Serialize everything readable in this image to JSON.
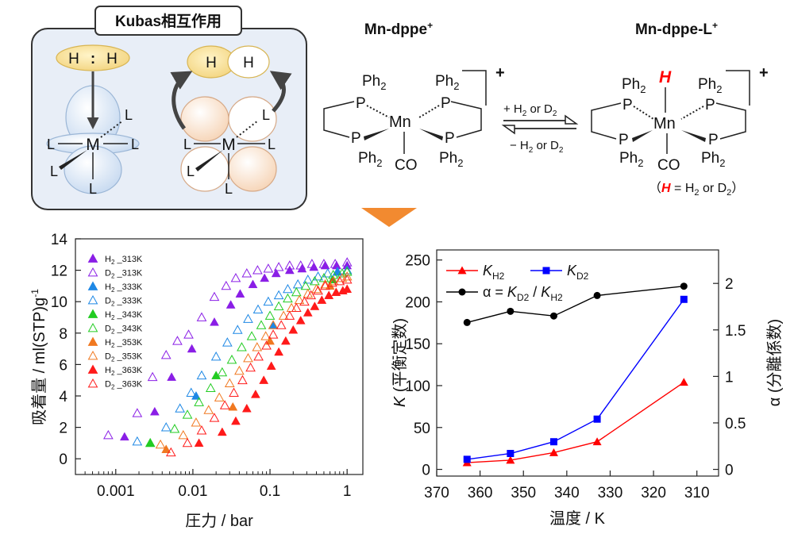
{
  "kubas": {
    "title": "Kubas相互作用",
    "h_dimer": {
      "left": "H",
      "colon": ":",
      "right": "H"
    },
    "h_pair": {
      "left": "H",
      "right": "H"
    },
    "metal": "M",
    "ligand": "L"
  },
  "scheme": {
    "left_title": "Mn-dppe",
    "right_title": "Mn-dppe-L",
    "sup_plus": "+",
    "charge": "+",
    "metal": "Mn",
    "P": "P",
    "Ph2": "Ph",
    "sub2": "2",
    "CO": "CO",
    "H": "H",
    "forward": {
      "prefix": "+ H",
      "mid": " or D",
      "sub": "2"
    },
    "reverse": {
      "prefix": "− H",
      "mid": " or D",
      "sub": "2"
    },
    "legend": {
      "open": "（",
      "H": "H",
      "eq": " = H",
      "or": " or D",
      "sub": "2",
      "close": "）"
    }
  },
  "colors": {
    "kubas_border": "#333333",
    "kubas_bg": "#e8eef7",
    "orbital_blue": "#dbe8f7",
    "orbital_peach": "#fbe3cf",
    "h_gold": "#f8df8e",
    "arrow_orange": "#f28a30",
    "h_red": "#ff0000"
  },
  "chart_data": [
    {
      "type": "scatter",
      "xlabel": "圧力 / bar",
      "ylabel": "吸着量 / ml(STP)g",
      "ylabel_sup": "-1",
      "xscale": "log",
      "xlim": [
        0.0003,
        1.6
      ],
      "ylim": [
        -1,
        14
      ],
      "xticks": [
        0.001,
        0.01,
        0.1,
        1
      ],
      "xtick_labels": [
        "0.001",
        "0.01",
        "0.1",
        "1"
      ],
      "yticks": [
        0,
        2,
        4,
        6,
        8,
        10,
        12,
        14
      ],
      "ytick_labels": [
        "0",
        "2",
        "4",
        "6",
        "8",
        "10",
        "12",
        "14"
      ],
      "legend_position": "top-left",
      "series": [
        {
          "label_prefix": "H",
          "label_sub": "2",
          "label_suffix": " _313K",
          "color": "#8a1ee6",
          "filled": true,
          "points": [
            [
              0.0013,
              1.4
            ],
            [
              0.0032,
              3.0
            ],
            [
              0.0053,
              5.2
            ],
            [
              0.0097,
              7.0
            ],
            [
              0.019,
              8.7
            ],
            [
              0.031,
              9.8
            ],
            [
              0.041,
              10.5
            ],
            [
              0.06,
              11.1
            ],
            [
              0.085,
              11.5
            ],
            [
              0.12,
              11.8
            ],
            [
              0.18,
              12.0
            ],
            [
              0.26,
              12.1
            ],
            [
              0.37,
              12.2
            ],
            [
              0.52,
              12.3
            ],
            [
              0.73,
              12.3
            ],
            [
              1.0,
              12.3
            ]
          ]
        },
        {
          "label_prefix": "D",
          "label_sub": "2",
          "label_suffix": " _313K",
          "color": "#8a1ee6",
          "filled": false,
          "points": [
            [
              0.0008,
              1.5
            ],
            [
              0.0019,
              2.9
            ],
            [
              0.003,
              5.2
            ],
            [
              0.0045,
              6.6
            ],
            [
              0.0063,
              7.5
            ],
            [
              0.0088,
              7.9
            ],
            [
              0.013,
              9.0
            ],
            [
              0.019,
              10.3
            ],
            [
              0.027,
              11.0
            ],
            [
              0.036,
              11.5
            ],
            [
              0.05,
              11.8
            ],
            [
              0.069,
              12.0
            ],
            [
              0.095,
              12.1
            ],
            [
              0.13,
              12.2
            ],
            [
              0.18,
              12.3
            ],
            [
              0.25,
              12.3
            ],
            [
              0.35,
              12.4
            ],
            [
              0.5,
              12.4
            ],
            [
              0.7,
              12.4
            ],
            [
              1.0,
              12.5
            ]
          ]
        },
        {
          "label_prefix": "H",
          "label_sub": "2",
          "label_suffix": " _333K",
          "color": "#1e88e5",
          "filled": true,
          "points": [
            [
              0.011,
              4.0
            ],
            [
              0.11,
              8.5
            ],
            [
              0.75,
              11.9
            ]
          ]
        },
        {
          "label_prefix": "D",
          "label_sub": "2",
          "label_suffix": " _333K",
          "color": "#1e88e5",
          "filled": false,
          "points": [
            [
              0.0019,
              1.1
            ],
            [
              0.0045,
              2.0
            ],
            [
              0.0068,
              3.2
            ],
            [
              0.0095,
              4.2
            ],
            [
              0.013,
              5.3
            ],
            [
              0.02,
              6.5
            ],
            [
              0.028,
              7.4
            ],
            [
              0.038,
              8.2
            ],
            [
              0.052,
              8.9
            ],
            [
              0.07,
              9.5
            ],
            [
              0.095,
              10.0
            ],
            [
              0.13,
              10.4
            ],
            [
              0.17,
              10.8
            ],
            [
              0.23,
              11.1
            ],
            [
              0.31,
              11.4
            ],
            [
              0.42,
              11.6
            ],
            [
              0.56,
              11.8
            ],
            [
              0.75,
              11.9
            ],
            [
              1.0,
              12.0
            ]
          ]
        },
        {
          "label_prefix": "H",
          "label_sub": "2",
          "label_suffix": " _343K",
          "color": "#22cc22",
          "filled": true,
          "points": [
            [
              0.0028,
              1.0
            ],
            [
              0.02,
              5.3
            ],
            [
              0.65,
              11.4
            ]
          ]
        },
        {
          "label_prefix": "D",
          "label_sub": "2",
          "label_suffix": " _343K",
          "color": "#22cc22",
          "filled": false,
          "points": [
            [
              0.0028,
              1.0
            ],
            [
              0.0058,
              1.9
            ],
            [
              0.0085,
              2.8
            ],
            [
              0.012,
              3.6
            ],
            [
              0.017,
              4.5
            ],
            [
              0.024,
              5.5
            ],
            [
              0.032,
              6.3
            ],
            [
              0.043,
              7.1
            ],
            [
              0.058,
              7.8
            ],
            [
              0.077,
              8.5
            ],
            [
              0.1,
              9.1
            ],
            [
              0.13,
              9.7
            ],
            [
              0.17,
              10.2
            ],
            [
              0.22,
              10.6
            ],
            [
              0.29,
              11.0
            ],
            [
              0.38,
              11.3
            ],
            [
              0.5,
              11.5
            ],
            [
              0.66,
              11.7
            ],
            [
              0.86,
              11.8
            ],
            [
              1.0,
              11.9
            ]
          ]
        },
        {
          "label_prefix": "H",
          "label_sub": "2",
          "label_suffix": " _353K",
          "color": "#f07820",
          "filled": true,
          "points": [
            [
              0.0045,
              0.6
            ],
            [
              0.033,
              3.3
            ],
            [
              0.1,
              7.5
            ],
            [
              0.6,
              11.0
            ]
          ]
        },
        {
          "label_prefix": "D",
          "label_sub": "2",
          "label_suffix": " _353K",
          "color": "#f07820",
          "filled": false,
          "points": [
            [
              0.0038,
              0.9
            ],
            [
              0.0075,
              1.5
            ],
            [
              0.011,
              2.3
            ],
            [
              0.016,
              3.1
            ],
            [
              0.022,
              3.9
            ],
            [
              0.03,
              4.8
            ],
            [
              0.04,
              5.6
            ],
            [
              0.052,
              6.4
            ],
            [
              0.068,
              7.1
            ],
            [
              0.088,
              7.8
            ],
            [
              0.11,
              8.5
            ],
            [
              0.15,
              9.1
            ],
            [
              0.19,
              9.6
            ],
            [
              0.24,
              10.1
            ],
            [
              0.31,
              10.5
            ],
            [
              0.4,
              10.8
            ],
            [
              0.52,
              11.1
            ],
            [
              0.67,
              11.3
            ],
            [
              0.86,
              11.5
            ],
            [
              1.0,
              11.6
            ]
          ]
        },
        {
          "label_prefix": "H",
          "label_sub": "2",
          "label_suffix": " _363K",
          "color": "#ff1a1a",
          "filled": true,
          "points": [
            [
              0.012,
              1.0
            ],
            [
              0.024,
              1.7
            ],
            [
              0.036,
              2.4
            ],
            [
              0.05,
              3.2
            ],
            [
              0.065,
              4.1
            ],
            [
              0.083,
              5.0
            ],
            [
              0.104,
              5.9
            ],
            [
              0.13,
              6.8
            ],
            [
              0.16,
              7.5
            ],
            [
              0.2,
              8.2
            ],
            [
              0.25,
              8.8
            ],
            [
              0.31,
              9.3
            ],
            [
              0.38,
              9.7
            ],
            [
              0.47,
              10.1
            ],
            [
              0.58,
              10.4
            ],
            [
              0.72,
              10.6
            ],
            [
              0.88,
              10.7
            ],
            [
              1.0,
              10.8
            ]
          ]
        },
        {
          "label_prefix": "D",
          "label_sub": "2",
          "label_suffix": " _363K",
          "color": "#ff1a1a",
          "filled": false,
          "points": [
            [
              0.0052,
              0.4
            ],
            [
              0.0085,
              1.0
            ],
            [
              0.013,
              1.8
            ],
            [
              0.019,
              2.6
            ],
            [
              0.026,
              3.4
            ],
            [
              0.034,
              4.2
            ],
            [
              0.044,
              5.0
            ],
            [
              0.056,
              5.8
            ],
            [
              0.071,
              6.5
            ],
            [
              0.09,
              7.2
            ],
            [
              0.11,
              7.9
            ],
            [
              0.14,
              8.5
            ],
            [
              0.18,
              9.1
            ],
            [
              0.22,
              9.6
            ],
            [
              0.28,
              10.0
            ],
            [
              0.34,
              10.4
            ],
            [
              0.42,
              10.7
            ],
            [
              0.52,
              11.0
            ],
            [
              0.64,
              11.2
            ],
            [
              0.8,
              11.3
            ],
            [
              1.0,
              11.4
            ]
          ]
        }
      ]
    },
    {
      "type": "line",
      "xlabel": "温度 / K",
      "ylabel_italic": "K",
      "ylabel_rest": " (平衡定数)",
      "y2label": "α (分離係数)",
      "xlim": [
        370,
        305
      ],
      "x_reversed": true,
      "ylim": [
        -8,
        262
      ],
      "y2lim": [
        -0.072,
        2.36
      ],
      "xticks": [
        370,
        360,
        350,
        340,
        330,
        320,
        310
      ],
      "xtick_labels": [
        "370",
        "360",
        "350",
        "340",
        "330",
        "320",
        "310"
      ],
      "yticks": [
        0,
        50,
        100,
        150,
        200,
        250
      ],
      "ytick_labels": [
        "0",
        "50",
        "100",
        "150",
        "200",
        "250"
      ],
      "y2ticks": [
        0,
        0.5,
        1,
        1.5,
        2
      ],
      "y2tick_labels": [
        "0",
        "0.5",
        "1",
        "1.5",
        "2"
      ],
      "legend_position": "top-left",
      "x": [
        363,
        353,
        343,
        333,
        313
      ],
      "series": [
        {
          "name_italic": "K",
          "name_sub": "H2",
          "color": "#ff0000",
          "marker": "triangle",
          "axis": "left",
          "values": [
            8,
            11,
            20,
            33,
            104
          ]
        },
        {
          "name_italic": "K",
          "name_sub": "D2",
          "color": "#0000ff",
          "marker": "square",
          "axis": "left",
          "values": [
            12,
            19,
            33,
            60,
            203
          ]
        },
        {
          "name_prefix": "α = ",
          "name_italic": "K",
          "name_sub": "D2",
          "name_mid": " / ",
          "name_italic2": "K",
          "name_sub2": "H2",
          "color": "#000000",
          "marker": "circle",
          "axis": "right",
          "values": [
            1.58,
            1.7,
            1.65,
            1.87,
            1.97
          ]
        }
      ]
    }
  ]
}
